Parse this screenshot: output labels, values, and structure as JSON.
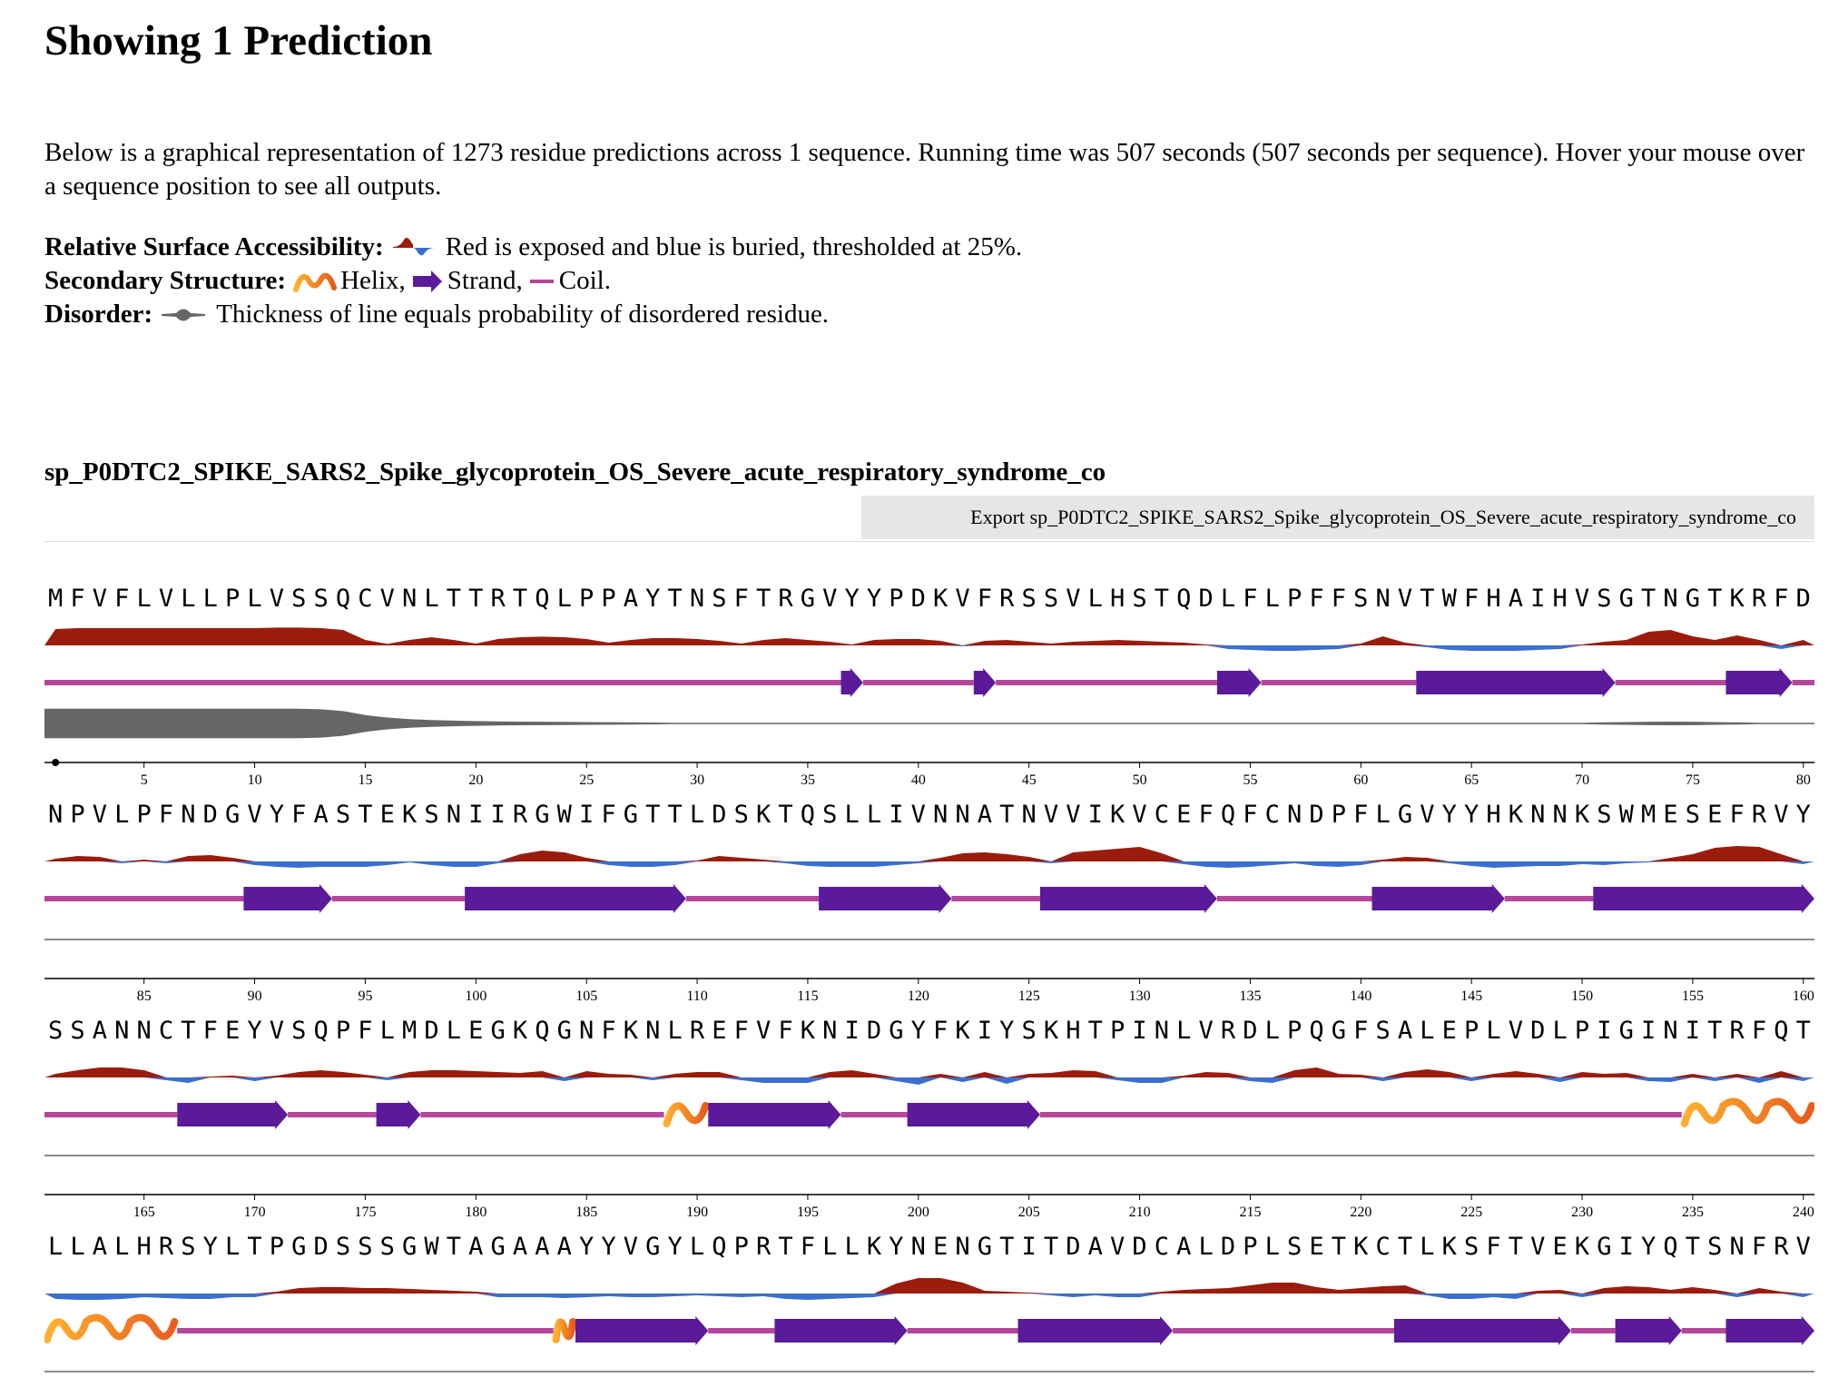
{
  "header": {
    "title": "Showing 1 Prediction",
    "summary": "Below is a graphical representation of 1273 residue predictions across 1 sequence. Running time was 507 seconds (507 seconds per sequence). Hover your mouse over a sequence position to see all outputs."
  },
  "legend": {
    "rsa_label": "Relative Surface Accessibility:",
    "rsa_text": "Red is exposed and blue is buried, thresholded at 25%.",
    "ss_label": "Secondary Structure:",
    "helix_text": "Helix,",
    "strand_text": "Strand,",
    "coil_text": "Coil.",
    "disorder_label": "Disorder:",
    "disorder_text": "Thickness of line equals probability of disordered residue."
  },
  "colors": {
    "exposed": "#9b1c0d",
    "buried": "#3a6fd1",
    "helix_start": "#ffb02e",
    "helix_end": "#e85d1c",
    "strand": "#5b1a99",
    "coil": "#b3479b",
    "disorder": "#666666"
  },
  "sequence": {
    "name": "sp_P0DTC2_SPIKE_SARS2_Spike_glycoprotein_OS_Severe_acute_respiratory_syndrome_co",
    "export_label": "Export sp_P0DTC2_SPIKE_SARS2_Spike_glycoprotein_OS_Severe_acute_respiratory_syndrome_co",
    "residues_per_row": 80,
    "rows": [
      {
        "start": 1,
        "residues": "MFVFLVLLPLVSSQCVNLTTRTQLPPAYTNSFTRGVYYPDKVFRSSVLHSTQDLFLPFFSNVTWFHAIHVSGTNGTKRFD",
        "ticks": [
          "5",
          "10",
          "15",
          "20",
          "25",
          "30",
          "35",
          "40",
          "45",
          "50",
          "55",
          "60",
          "65",
          "70",
          "75",
          "80"
        ],
        "ss": [
          {
            "type": "coil",
            "start": 1,
            "end": 36
          },
          {
            "type": "strand",
            "start": 37,
            "end": 37
          },
          {
            "type": "coil",
            "start": 38,
            "end": 42
          },
          {
            "type": "strand",
            "start": 43,
            "end": 43
          },
          {
            "type": "coil",
            "start": 44,
            "end": 53
          },
          {
            "type": "strand",
            "start": 54,
            "end": 55
          },
          {
            "type": "coil",
            "start": 56,
            "end": 62
          },
          {
            "type": "strand",
            "start": 63,
            "end": 71
          },
          {
            "type": "coil",
            "start": 72,
            "end": 76
          },
          {
            "type": "strand",
            "start": 77,
            "end": 79
          },
          {
            "type": "coil",
            "start": 80,
            "end": 80
          }
        ],
        "rsa": [
          0.9,
          0.95,
          0.95,
          0.95,
          0.95,
          0.95,
          0.95,
          0.95,
          0.95,
          0.95,
          0.98,
          0.98,
          0.95,
          0.85,
          0.3,
          0.08,
          0.3,
          0.45,
          0.3,
          0.1,
          0.35,
          0.45,
          0.48,
          0.45,
          0.35,
          0.15,
          0.3,
          0.4,
          0.4,
          0.35,
          0.25,
          0.1,
          0.3,
          0.4,
          0.3,
          0.2,
          0.05,
          0.3,
          0.35,
          0.35,
          0.25,
          -0.05,
          0.25,
          0.3,
          0.2,
          0.1,
          0.2,
          0.25,
          0.3,
          0.25,
          0.2,
          0.15,
          0.05,
          -0.2,
          -0.25,
          -0.3,
          -0.3,
          -0.25,
          -0.2,
          0.1,
          0.5,
          0.15,
          -0.1,
          -0.25,
          -0.3,
          -0.3,
          -0.3,
          -0.25,
          -0.2,
          0.05,
          0.2,
          0.3,
          0.75,
          0.85,
          0.5,
          0.3,
          0.55,
          0.3,
          -0.2,
          0.3
        ],
        "disorder": [
          0.95,
          0.95,
          0.95,
          0.95,
          0.95,
          0.95,
          0.95,
          0.95,
          0.95,
          0.95,
          0.95,
          0.95,
          0.92,
          0.8,
          0.55,
          0.38,
          0.28,
          0.22,
          0.18,
          0.15,
          0.13,
          0.12,
          0.11,
          0.1,
          0.09,
          0.08,
          0.07,
          0.06,
          0.05,
          0.05,
          0.04,
          0.04,
          0.03,
          0.03,
          0.03,
          0.03,
          0.02,
          0.02,
          0.02,
          0.02,
          0.02,
          0.02,
          0.02,
          0.02,
          0.02,
          0.02,
          0.02,
          0.02,
          0.02,
          0.02,
          0.02,
          0.02,
          0.02,
          0.02,
          0.02,
          0.02,
          0.02,
          0.02,
          0.02,
          0.02,
          0.02,
          0.02,
          0.02,
          0.02,
          0.02,
          0.02,
          0.02,
          0.02,
          0.03,
          0.05,
          0.07,
          0.09,
          0.11,
          0.12,
          0.11,
          0.09,
          0.07,
          0.05,
          0.03,
          0.02
        ]
      },
      {
        "start": 81,
        "residues": "NPVLPFNDGVYFASTEKSNIIRGWIFGTTLDSKTQSLLIVNNATNVVIKVCEFQFCNDPFLGVYYHKNNKSWMESEFRVY",
        "ticks": [
          "85",
          "90",
          "95",
          "100",
          "105",
          "110",
          "115",
          "120",
          "125",
          "130",
          "135",
          "140",
          "145",
          "150",
          "155",
          "160"
        ],
        "ss": [
          {
            "type": "coil",
            "start": 81,
            "end": 89
          },
          {
            "type": "strand",
            "start": 90,
            "end": 93
          },
          {
            "type": "coil",
            "start": 94,
            "end": 99
          },
          {
            "type": "strand",
            "start": 100,
            "end": 109
          },
          {
            "type": "coil",
            "start": 110,
            "end": 115
          },
          {
            "type": "strand",
            "start": 116,
            "end": 121
          },
          {
            "type": "coil",
            "start": 122,
            "end": 125
          },
          {
            "type": "strand",
            "start": 126,
            "end": 133
          },
          {
            "type": "coil",
            "start": 134,
            "end": 140
          },
          {
            "type": "strand",
            "start": 141,
            "end": 146
          },
          {
            "type": "coil",
            "start": 147,
            "end": 150
          },
          {
            "type": "strand",
            "start": 151,
            "end": 160
          }
        ],
        "rsa": [
          0.15,
          0.3,
          0.25,
          -0.1,
          0.1,
          -0.1,
          0.3,
          0.35,
          0.2,
          -0.2,
          -0.3,
          -0.35,
          -0.3,
          -0.3,
          -0.3,
          -0.2,
          -0.05,
          -0.2,
          -0.3,
          -0.3,
          -0.1,
          0.4,
          0.6,
          0.5,
          0.2,
          -0.2,
          -0.3,
          -0.3,
          -0.2,
          0.05,
          0.3,
          0.2,
          0.1,
          -0.1,
          -0.25,
          -0.3,
          -0.3,
          -0.3,
          -0.2,
          -0.1,
          0.2,
          0.45,
          0.5,
          0.4,
          0.25,
          -0.1,
          0.5,
          0.6,
          0.7,
          0.8,
          0.45,
          -0.15,
          -0.3,
          -0.35,
          -0.3,
          -0.2,
          -0.1,
          -0.25,
          -0.3,
          -0.2,
          0.1,
          0.25,
          0.2,
          -0.1,
          -0.25,
          -0.35,
          -0.3,
          -0.25,
          -0.25,
          -0.15,
          -0.2,
          -0.1,
          -0.05,
          0.2,
          0.4,
          0.75,
          0.85,
          0.8,
          0.4,
          -0.15
        ],
        "disorder": [
          0.02,
          0.02,
          0.02,
          0.02,
          0.02,
          0.02,
          0.02,
          0.02,
          0.02,
          0.02,
          0.02,
          0.02,
          0.02,
          0.02,
          0.02,
          0.02,
          0.02,
          0.02,
          0.02,
          0.02,
          0.02,
          0.02,
          0.02,
          0.02,
          0.02,
          0.02,
          0.02,
          0.02,
          0.02,
          0.02,
          0.02,
          0.02,
          0.02,
          0.02,
          0.02,
          0.02,
          0.02,
          0.02,
          0.02,
          0.02,
          0.02,
          0.02,
          0.02,
          0.02,
          0.02,
          0.02,
          0.02,
          0.02,
          0.02,
          0.02,
          0.02,
          0.02,
          0.02,
          0.02,
          0.02,
          0.02,
          0.02,
          0.02,
          0.02,
          0.02,
          0.02,
          0.02,
          0.02,
          0.02,
          0.02,
          0.02,
          0.02,
          0.02,
          0.02,
          0.02,
          0.02,
          0.02,
          0.02,
          0.02,
          0.02,
          0.02,
          0.02,
          0.02,
          0.02,
          0.02
        ]
      },
      {
        "start": 161,
        "residues": "SSANNCTFEYVSQPFLMDLEGKQGNFKNLREFVFKNIDGYFKIYSKHTPINLVRDLPQGFSALEPLVDLPIGINITRFQT",
        "ticks": [
          "165",
          "170",
          "175",
          "180",
          "185",
          "190",
          "195",
          "200",
          "205",
          "210",
          "215",
          "220",
          "225",
          "230",
          "235",
          "240"
        ],
        "ss": [
          {
            "type": "coil",
            "start": 161,
            "end": 166
          },
          {
            "type": "strand",
            "start": 167,
            "end": 171
          },
          {
            "type": "coil",
            "start": 172,
            "end": 175
          },
          {
            "type": "strand",
            "start": 176,
            "end": 177
          },
          {
            "type": "coil",
            "start": 178,
            "end": 188
          },
          {
            "type": "helix",
            "start": 189,
            "end": 190
          },
          {
            "type": "strand",
            "start": 191,
            "end": 196
          },
          {
            "type": "coil",
            "start": 197,
            "end": 199
          },
          {
            "type": "strand",
            "start": 200,
            "end": 205
          },
          {
            "type": "coil",
            "start": 206,
            "end": 234
          },
          {
            "type": "helix",
            "start": 235,
            "end": 240
          }
        ],
        "rsa": [
          0.2,
          0.4,
          0.55,
          0.55,
          0.4,
          -0.15,
          -0.3,
          0.05,
          0.1,
          -0.2,
          0.1,
          0.3,
          0.4,
          0.3,
          0.15,
          -0.15,
          0.3,
          0.4,
          0.4,
          0.35,
          0.3,
          0.25,
          0.35,
          -0.2,
          0.35,
          0.2,
          0.15,
          -0.15,
          0.2,
          0.3,
          0.3,
          -0.15,
          -0.3,
          -0.3,
          -0.3,
          0.3,
          0.4,
          0.2,
          -0.2,
          -0.4,
          0.2,
          -0.25,
          0.3,
          -0.35,
          0.2,
          0.25,
          0.4,
          0.35,
          -0.15,
          -0.3,
          -0.3,
          0.1,
          0.3,
          0.25,
          -0.2,
          -0.3,
          0.4,
          0.55,
          0.2,
          0.15,
          -0.2,
          0.3,
          0.45,
          0.3,
          -0.2,
          0.2,
          0.35,
          0.2,
          -0.25,
          0.3,
          0.2,
          0.25,
          -0.2,
          -0.25,
          0.2,
          -0.2,
          0.2,
          -0.3,
          0.35,
          -0.2
        ],
        "disorder": [
          0.02,
          0.02,
          0.02,
          0.02,
          0.02,
          0.02,
          0.02,
          0.02,
          0.02,
          0.02,
          0.02,
          0.02,
          0.02,
          0.02,
          0.02,
          0.02,
          0.02,
          0.02,
          0.02,
          0.02,
          0.02,
          0.02,
          0.02,
          0.02,
          0.02,
          0.02,
          0.02,
          0.02,
          0.02,
          0.02,
          0.02,
          0.02,
          0.02,
          0.02,
          0.02,
          0.02,
          0.02,
          0.02,
          0.02,
          0.02,
          0.02,
          0.02,
          0.02,
          0.02,
          0.02,
          0.02,
          0.02,
          0.02,
          0.02,
          0.02,
          0.02,
          0.02,
          0.02,
          0.02,
          0.02,
          0.02,
          0.02,
          0.02,
          0.02,
          0.02,
          0.02,
          0.02,
          0.02,
          0.02,
          0.02,
          0.02,
          0.02,
          0.02,
          0.02,
          0.02,
          0.02,
          0.02,
          0.02,
          0.02,
          0.02,
          0.02,
          0.02,
          0.02,
          0.02,
          0.02
        ]
      },
      {
        "start": 241,
        "residues": "LLALHRSYLTPGDSSSGWTAGAAAYYVGYLQPRTFLLKYNENGTITDAVDCALDPLSETKCTLKSFTVEKGIYQTSNFRV",
        "ticks": [
          "",
          "",
          "",
          "",
          "",
          "",
          "",
          "",
          "",
          "",
          "",
          "",
          "",
          "",
          "",
          ""
        ],
        "ss": [
          {
            "type": "helix",
            "start": 241,
            "end": 246
          },
          {
            "type": "coil",
            "start": 247,
            "end": 263
          },
          {
            "type": "helix",
            "start": 264,
            "end": 264
          },
          {
            "type": "strand",
            "start": 265,
            "end": 270
          },
          {
            "type": "coil",
            "start": 271,
            "end": 273
          },
          {
            "type": "strand",
            "start": 274,
            "end": 279
          },
          {
            "type": "coil",
            "start": 280,
            "end": 284
          },
          {
            "type": "strand",
            "start": 285,
            "end": 291
          },
          {
            "type": "coil",
            "start": 292,
            "end": 301
          },
          {
            "type": "strand",
            "start": 302,
            "end": 309
          },
          {
            "type": "coil",
            "start": 310,
            "end": 311
          },
          {
            "type": "strand",
            "start": 312,
            "end": 314
          },
          {
            "type": "coil",
            "start": 315,
            "end": 316
          },
          {
            "type": "strand",
            "start": 317,
            "end": 320
          }
        ],
        "rsa": [
          -0.3,
          -0.35,
          -0.35,
          -0.3,
          -0.2,
          -0.25,
          -0.3,
          -0.3,
          -0.2,
          -0.2,
          0.1,
          0.3,
          0.35,
          0.35,
          0.3,
          0.3,
          0.25,
          0.2,
          0.15,
          0.1,
          -0.2,
          -0.2,
          -0.2,
          -0.25,
          -0.2,
          -0.15,
          -0.2,
          -0.2,
          -0.15,
          -0.1,
          -0.15,
          -0.2,
          -0.15,
          -0.3,
          -0.35,
          -0.3,
          -0.25,
          -0.2,
          0.55,
          0.85,
          0.85,
          0.6,
          0.15,
          0.1,
          0.05,
          -0.1,
          -0.2,
          -0.1,
          -0.2,
          -0.2,
          0.1,
          0.2,
          0.25,
          0.3,
          0.45,
          0.6,
          0.6,
          0.35,
          0.2,
          0.3,
          0.4,
          0.45,
          -0.1,
          -0.3,
          -0.3,
          -0.2,
          -0.3,
          0.15,
          0.2,
          -0.2,
          0.3,
          0.4,
          0.35,
          0.2,
          0.35,
          0.2,
          -0.2,
          0.3,
          0.1,
          -0.2
        ],
        "disorder": [
          0.02,
          0.02,
          0.02,
          0.02,
          0.02,
          0.02,
          0.02,
          0.02,
          0.02,
          0.02,
          0.02,
          0.02,
          0.02,
          0.02,
          0.02,
          0.02,
          0.02,
          0.02,
          0.02,
          0.02,
          0.02,
          0.02,
          0.02,
          0.02,
          0.02,
          0.02,
          0.02,
          0.02,
          0.02,
          0.02,
          0.02,
          0.02,
          0.02,
          0.02,
          0.02,
          0.02,
          0.02,
          0.02,
          0.02,
          0.02,
          0.02,
          0.02,
          0.02,
          0.02,
          0.02,
          0.02,
          0.02,
          0.02,
          0.02,
          0.02,
          0.02,
          0.02,
          0.02,
          0.02,
          0.02,
          0.02,
          0.02,
          0.02,
          0.02,
          0.02,
          0.02,
          0.02,
          0.02,
          0.02,
          0.02,
          0.02,
          0.02,
          0.02,
          0.02,
          0.02,
          0.02,
          0.02,
          0.02,
          0.02,
          0.02,
          0.02,
          0.02,
          0.02,
          0.02,
          0.02
        ]
      }
    ]
  }
}
